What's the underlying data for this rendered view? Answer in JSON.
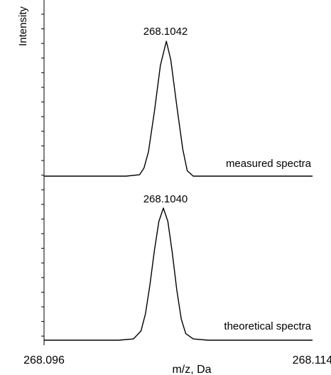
{
  "chart_data": {
    "type": "line",
    "xlabel": "m/z, Da",
    "ylabel": "Intensity",
    "xlim": [
      268.096,
      268.114
    ],
    "x_tick_labels": [
      "268.096",
      "268.114"
    ],
    "panels": [
      {
        "series_label": "measured spectra",
        "peak_label": "268.1042",
        "points": [
          [
            268.096,
            0.0
          ],
          [
            268.1015,
            0.0
          ],
          [
            268.1024,
            0.01
          ],
          [
            268.1027,
            0.06
          ],
          [
            268.103,
            0.18
          ],
          [
            268.1034,
            0.48
          ],
          [
            268.1038,
            0.82
          ],
          [
            268.1042,
            1.0
          ],
          [
            268.1045,
            0.86
          ],
          [
            268.1049,
            0.52
          ],
          [
            268.1053,
            0.2
          ],
          [
            268.1056,
            0.04
          ],
          [
            268.106,
            0.0
          ],
          [
            268.114,
            0.0
          ]
        ]
      },
      {
        "series_label": "theoretical spectra",
        "peak_label": "268.1040",
        "points": [
          [
            268.096,
            0.0
          ],
          [
            268.101,
            0.0
          ],
          [
            268.102,
            0.01
          ],
          [
            268.1025,
            0.07
          ],
          [
            268.1028,
            0.2
          ],
          [
            268.1031,
            0.42
          ],
          [
            268.1034,
            0.68
          ],
          [
            268.1037,
            0.9
          ],
          [
            268.104,
            1.0
          ],
          [
            268.1043,
            0.9
          ],
          [
            268.1046,
            0.66
          ],
          [
            268.1049,
            0.38
          ],
          [
            268.1052,
            0.16
          ],
          [
            268.1055,
            0.05
          ],
          [
            268.106,
            0.01
          ],
          [
            268.107,
            0.0
          ],
          [
            268.114,
            0.0
          ]
        ]
      }
    ]
  }
}
